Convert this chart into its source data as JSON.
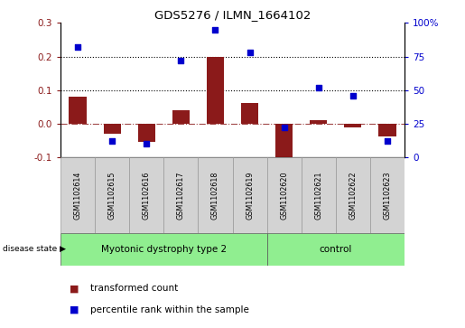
{
  "title": "GDS5276 / ILMN_1664102",
  "samples": [
    "GSM1102614",
    "GSM1102615",
    "GSM1102616",
    "GSM1102617",
    "GSM1102618",
    "GSM1102619",
    "GSM1102620",
    "GSM1102621",
    "GSM1102622",
    "GSM1102623"
  ],
  "transformed_count": [
    0.08,
    -0.03,
    -0.055,
    0.04,
    0.2,
    0.063,
    -0.115,
    0.01,
    -0.01,
    -0.038
  ],
  "percentile_rank": [
    82,
    12,
    10,
    72,
    95,
    78,
    22,
    52,
    46,
    12
  ],
  "groups": [
    {
      "label": "Myotonic dystrophy type 2",
      "start": 0,
      "end": 6,
      "color": "#90EE90"
    },
    {
      "label": "control",
      "start": 6,
      "end": 10,
      "color": "#90EE90"
    }
  ],
  "bar_color": "#8B1A1A",
  "scatter_color": "#0000CD",
  "ylim_left": [
    -0.1,
    0.3
  ],
  "ylim_right": [
    0,
    100
  ],
  "yticks_left": [
    -0.1,
    0.0,
    0.1,
    0.2,
    0.3
  ],
  "yticks_right": [
    0,
    25,
    50,
    75,
    100
  ],
  "yticklabels_right": [
    "0",
    "25",
    "50",
    "75",
    "100%"
  ],
  "disease_state_label": "disease state",
  "legend_bar_label": "transformed count",
  "legend_scatter_label": "percentile rank within the sample",
  "hlines": [
    0.1,
    0.2
  ],
  "background_color": "#ffffff",
  "label_area_color": "#d3d3d3"
}
